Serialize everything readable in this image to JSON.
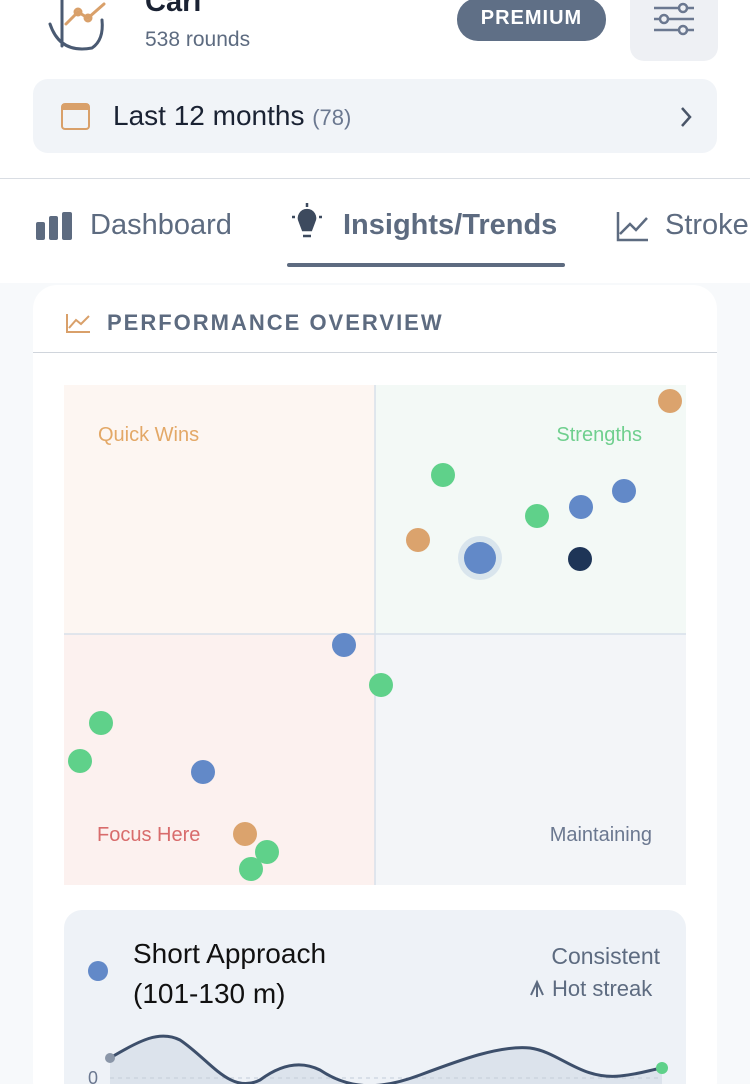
{
  "header": {
    "name": "Carl",
    "rounds": "538 rounds",
    "badge": "PREMIUM"
  },
  "filter": {
    "period": "Last 12 months",
    "count": "(78)"
  },
  "tabs": [
    "Dashboard",
    "Insights/Trends",
    "Stroke"
  ],
  "card": {
    "title": "PERFORMANCE OVERVIEW",
    "quadrants": {
      "top_left": "Quick Wins",
      "top_right": "Strengths",
      "bottom_left": "Focus Here",
      "bottom_right": "Maintaining"
    }
  },
  "detail": {
    "title": "Short Approach (101-130 m)",
    "status": "Consistent",
    "trend": "Hot streak",
    "axis_label": "0"
  }
}
